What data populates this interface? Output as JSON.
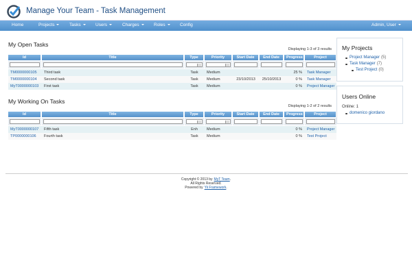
{
  "header": {
    "title": "Manage Your Team - Task Management"
  },
  "nav": {
    "items": [
      {
        "label": "Home",
        "menu": false
      },
      {
        "label": "Projects",
        "menu": true
      },
      {
        "label": "Tasks",
        "menu": true
      },
      {
        "label": "Users",
        "menu": true
      },
      {
        "label": "Charges",
        "menu": true
      },
      {
        "label": "Roles",
        "menu": true
      },
      {
        "label": "Config",
        "menu": false
      }
    ],
    "user": {
      "label": "Admin, User",
      "menu": true
    }
  },
  "sections": [
    {
      "title": "My Open Tasks",
      "summary": "Displaying 1-3 of 3 results",
      "columns": [
        {
          "label": "Id",
          "filter": "text"
        },
        {
          "label": "Title",
          "filter": "text"
        },
        {
          "label": "Type",
          "filter": "select"
        },
        {
          "label": "Priority",
          "filter": "select"
        },
        {
          "label": "Start Date",
          "filter": "text"
        },
        {
          "label": "End Date",
          "filter": "text"
        },
        {
          "label": "Progress",
          "filter": "text"
        },
        {
          "label": "Project",
          "filter": "text"
        }
      ],
      "rows": [
        [
          "TM0000000105",
          "Third task",
          "Task",
          "Medium",
          null,
          null,
          "25 %",
          "Task Manager"
        ],
        [
          "TM0000000104",
          "Second task",
          "Task",
          "Medium",
          "23/10/2013",
          "25/10/2013",
          "0 %",
          "Task Manager"
        ],
        [
          "MyT0000000103",
          "First task",
          "Task",
          "Medium",
          null,
          null,
          "0 %",
          "Project Manager"
        ]
      ]
    },
    {
      "title": "My Working On Tasks",
      "summary": "Displaying 1-2 of 2 results",
      "columns": [
        {
          "label": "Id",
          "filter": "text"
        },
        {
          "label": "Title",
          "filter": "text"
        },
        {
          "label": "Type",
          "filter": "select"
        },
        {
          "label": "Priority",
          "filter": "select"
        },
        {
          "label": "Start Date",
          "filter": "text"
        },
        {
          "label": "End Date",
          "filter": "text"
        },
        {
          "label": "Progress",
          "filter": "text"
        },
        {
          "label": "Project",
          "filter": "text"
        }
      ],
      "rows": [
        [
          "MyT0000000107",
          "Fifth task",
          "Enh",
          "Medium",
          null,
          null,
          "0 %",
          "Project Manager"
        ],
        [
          "TP0000000106",
          "Fourth task",
          "Task",
          "Medium",
          null,
          null,
          "0 %",
          "Test Project"
        ]
      ]
    }
  ],
  "sidebar": {
    "projects": {
      "title": "My Projects",
      "items": [
        {
          "name": "Project Manager",
          "count": "(5)"
        },
        {
          "name": "Task Manager",
          "count": "(7)"
        },
        {
          "name": "Test Project",
          "count": "(0)",
          "nested": true
        }
      ]
    },
    "users": {
      "title": "Users Online",
      "online": "Online: 1",
      "names": [
        "domenico giordano"
      ]
    }
  },
  "footer": {
    "copyright": "Copyright © 2013 by",
    "team": "MyT Team",
    "period": ".",
    "rights": "All Rights Reserved.",
    "powered": "Powered by",
    "framework": "Yii Framework",
    "end": "."
  }
}
